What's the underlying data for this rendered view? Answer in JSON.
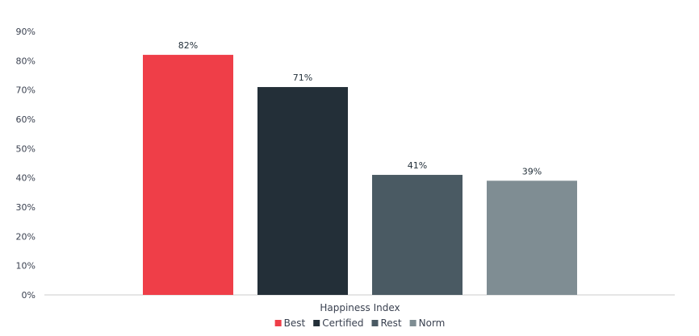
{
  "chart_data": {
    "type": "bar",
    "categories": [
      "Happiness Index"
    ],
    "series": [
      {
        "name": "Best",
        "values": [
          82
        ],
        "label": "82%",
        "color": "#ef3e48"
      },
      {
        "name": "Certified",
        "values": [
          71
        ],
        "label": "71%",
        "color": "#232f38"
      },
      {
        "name": "Rest",
        "values": [
          41
        ],
        "label": "41%",
        "color": "#4a5a63"
      },
      {
        "name": "Norm",
        "values": [
          39
        ],
        "label": "39%",
        "color": "#7f8d93"
      }
    ],
    "yticks": [
      "0%",
      "10%",
      "20%",
      "30%",
      "40%",
      "50%",
      "60%",
      "70%",
      "80%",
      "90%"
    ],
    "ylim": [
      0,
      90
    ],
    "grid": false,
    "legend_position": "bottom-center",
    "colors": {
      "axis": "#cccccc",
      "text": "#3a4150"
    }
  }
}
